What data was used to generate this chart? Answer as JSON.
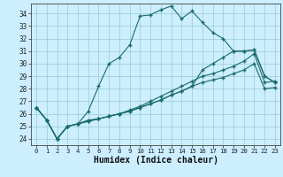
{
  "title": "",
  "xlabel": "Humidex (Indice chaleur)",
  "bg_color": "#cceeff",
  "line_color": "#1a6b6b",
  "xlim": [
    -0.5,
    23.5
  ],
  "ylim": [
    23.5,
    34.8
  ],
  "yticks": [
    24,
    25,
    26,
    27,
    28,
    29,
    30,
    31,
    32,
    33,
    34
  ],
  "xticks": [
    0,
    1,
    2,
    3,
    4,
    5,
    6,
    7,
    8,
    9,
    10,
    11,
    12,
    13,
    14,
    15,
    16,
    17,
    18,
    19,
    20,
    21,
    22,
    23
  ],
  "series": [
    [
      26.5,
      25.5,
      24.0,
      25.0,
      25.2,
      26.2,
      28.2,
      30.0,
      30.5,
      31.5,
      33.8,
      33.9,
      34.3,
      34.6,
      33.6,
      34.2,
      33.3,
      32.5,
      32.0,
      31.0,
      31.0,
      31.1,
      29.0,
      28.5
    ],
    [
      26.5,
      25.5,
      24.0,
      25.0,
      25.2,
      25.5,
      25.6,
      25.8,
      26.0,
      26.3,
      26.6,
      27.0,
      27.4,
      27.8,
      28.2,
      28.6,
      29.0,
      29.2,
      29.5,
      29.8,
      30.2,
      30.8,
      28.5,
      28.6
    ],
    [
      26.5,
      25.5,
      24.0,
      25.0,
      25.2,
      25.4,
      25.6,
      25.8,
      26.0,
      26.2,
      26.5,
      26.8,
      27.1,
      27.5,
      27.8,
      28.2,
      28.5,
      28.7,
      28.9,
      29.2,
      29.5,
      30.0,
      28.0,
      28.1
    ],
    [
      26.5,
      25.5,
      24.0,
      25.0,
      25.2,
      25.4,
      25.6,
      25.8,
      26.0,
      26.2,
      26.5,
      26.8,
      27.1,
      27.5,
      27.8,
      28.2,
      29.5,
      30.0,
      30.5,
      31.0,
      31.0,
      31.1,
      29.0,
      28.5
    ]
  ]
}
